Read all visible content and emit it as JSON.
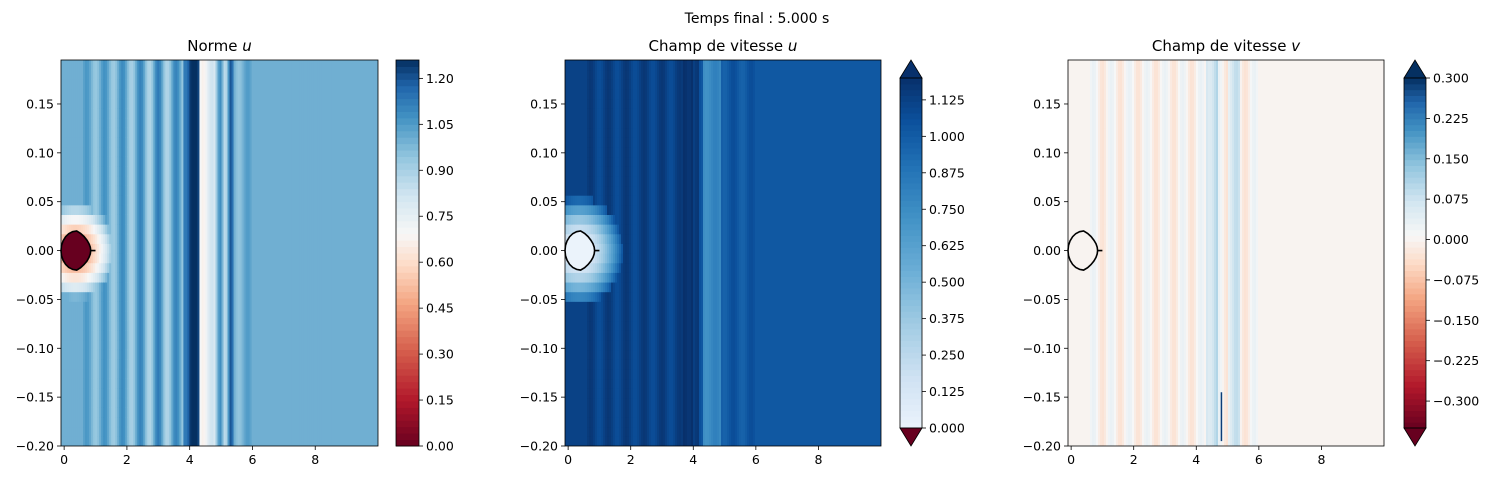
{
  "figure_title": "Temps final : 5.000 s",
  "chart_data": [
    {
      "type": "heatmap",
      "title": "Norme u",
      "title_parts": {
        "text": "Norme ",
        "var": "u"
      },
      "xlim": [
        -0.1,
        10.0
      ],
      "ylim": [
        -0.2,
        0.195
      ],
      "xticks": [
        "0",
        "2",
        "4",
        "6",
        "8"
      ],
      "xtick_values": [
        0,
        2,
        4,
        6,
        8
      ],
      "yticks": [
        "0.15",
        "0.10",
        "0.05",
        "0.00",
        "−0.05",
        "−0.10",
        "−0.15",
        "−0.20"
      ],
      "ytick_values": [
        0.15,
        0.1,
        0.05,
        0.0,
        -0.05,
        -0.1,
        -0.15,
        -0.2
      ],
      "colorbar": {
        "ticks": [
          "0.00",
          "0.15",
          "0.30",
          "0.45",
          "0.60",
          "0.75",
          "0.90",
          "1.05",
          "1.20"
        ],
        "values": [
          0.0,
          0.15,
          0.3,
          0.45,
          0.6,
          0.75,
          0.9,
          1.05,
          1.2
        ],
        "range": [
          0.0,
          1.26
        ],
        "extend": "none",
        "colormap": "RdBu"
      },
      "field_background": 1.0,
      "obstacle": {
        "x_range": [
          0.0,
          1.0
        ],
        "y_range": [
          -0.02,
          0.02
        ],
        "outline_color": "#000000",
        "fill_value": 0.0
      }
    },
    {
      "type": "heatmap",
      "title": "Champ de vitesse u",
      "title_parts": {
        "text": "Champ de vitesse ",
        "var": "u"
      },
      "xlim": [
        -0.1,
        10.0
      ],
      "ylim": [
        -0.2,
        0.195
      ],
      "xticks": [
        "0",
        "2",
        "4",
        "6",
        "8"
      ],
      "xtick_values": [
        0,
        2,
        4,
        6,
        8
      ],
      "yticks": [
        "0.15",
        "0.10",
        "0.05",
        "0.00",
        "−0.05",
        "−0.10",
        "−0.15",
        "−0.20"
      ],
      "ytick_values": [
        0.15,
        0.1,
        0.05,
        0.0,
        -0.05,
        -0.1,
        -0.15,
        -0.2
      ],
      "colorbar": {
        "ticks": [
          "0.000",
          "0.125",
          "0.250",
          "0.375",
          "0.500",
          "0.625",
          "0.750",
          "0.875",
          "1.000",
          "1.125"
        ],
        "values": [
          0.0,
          0.125,
          0.25,
          0.375,
          0.5,
          0.625,
          0.75,
          0.875,
          1.0,
          1.125
        ],
        "range": [
          0.0,
          1.2
        ],
        "extend": "both",
        "colormap": "Blues"
      },
      "field_background": 1.0,
      "obstacle": {
        "x_range": [
          0.0,
          1.0
        ],
        "y_range": [
          -0.02,
          0.02
        ],
        "outline_color": "#000000",
        "fill_value": 0.0
      }
    },
    {
      "type": "heatmap",
      "title": "Champ de vitesse v",
      "title_parts": {
        "text": "Champ de vitesse ",
        "var": "v"
      },
      "xlim": [
        -0.1,
        10.0
      ],
      "ylim": [
        -0.2,
        0.195
      ],
      "xticks": [
        "0",
        "2",
        "4",
        "6",
        "8"
      ],
      "xtick_values": [
        0,
        2,
        4,
        6,
        8
      ],
      "yticks": [
        "0.15",
        "0.10",
        "0.05",
        "0.00",
        "−0.05",
        "−0.10",
        "−0.15",
        "−0.20"
      ],
      "ytick_values": [
        0.15,
        0.1,
        0.05,
        0.0,
        -0.05,
        -0.1,
        -0.15,
        -0.2
      ],
      "colorbar": {
        "ticks": [
          "−0.300",
          "−0.225",
          "−0.150",
          "−0.075",
          "0.000",
          "0.075",
          "0.150",
          "0.225",
          "0.300"
        ],
        "values": [
          -0.3,
          -0.225,
          -0.15,
          -0.075,
          0.0,
          0.075,
          0.15,
          0.225,
          0.3
        ],
        "range": [
          -0.35,
          0.3
        ],
        "extend": "both",
        "colormap": "RdBu"
      },
      "field_background": 0.0,
      "obstacle": {
        "x_range": [
          0.0,
          1.0
        ],
        "y_range": [
          -0.02,
          0.02
        ],
        "outline_color": "#000000",
        "fill_value": 0.0
      }
    }
  ]
}
